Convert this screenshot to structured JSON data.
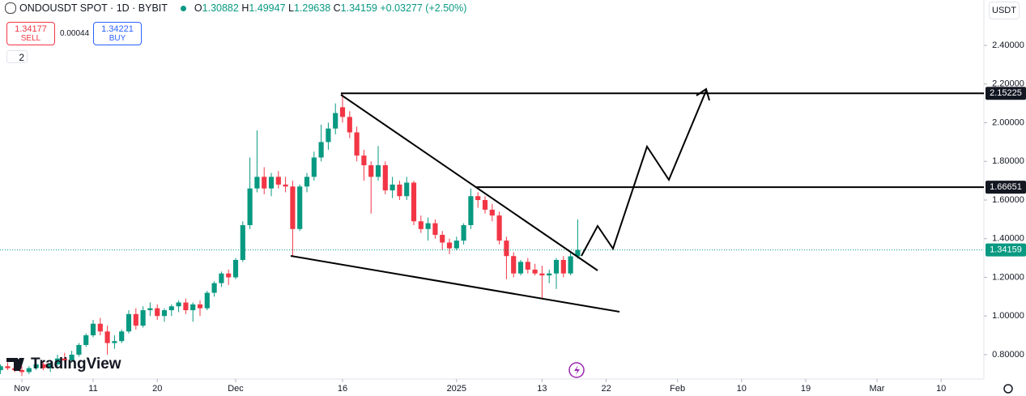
{
  "toolbar": {
    "symbol": "ONDOUSDT SPOT · 1D · BYBIT",
    "ohlc_letters": [
      "O",
      "H",
      "L",
      "C"
    ],
    "change": "+0.03277 (+2.50%)",
    "sell_price": "1.34177",
    "sell_label": "SELL",
    "spread": "0.00044",
    "buy_price": "1.34221",
    "buy_label": "BUY",
    "indicators_count": "2",
    "currency": "USDT",
    "brand": "TradingView"
  },
  "chart_data": {
    "type": "candlestick",
    "up_color": "#089981",
    "down_color": "#f23645",
    "x": [
      -3,
      -2,
      -1,
      0,
      1,
      2,
      3,
      4,
      5,
      6,
      7,
      8,
      9,
      10,
      11,
      12,
      13,
      14,
      15,
      16,
      17,
      18,
      19,
      20,
      21,
      22,
      23,
      24,
      25,
      26,
      27,
      28,
      29,
      30,
      31,
      32,
      33,
      34,
      35,
      36,
      37,
      38,
      39,
      40,
      41,
      42,
      43,
      44,
      45,
      46,
      47,
      48,
      49,
      50,
      51,
      52,
      53,
      54,
      55,
      56,
      57,
      58,
      59,
      60,
      61,
      62,
      63,
      64,
      65,
      66,
      67,
      68,
      69,
      70,
      71,
      72,
      73,
      74,
      75,
      76,
      77,
      78
    ],
    "open": [
      0.72,
      0.74,
      0.73,
      0.72,
      0.71,
      0.73,
      0.75,
      0.73,
      0.75,
      0.78,
      0.77,
      0.8,
      0.85,
      0.9,
      0.96,
      0.92,
      0.86,
      0.87,
      0.92,
      1.01,
      0.95,
      1.03,
      1.04,
      1.0,
      1.03,
      1.05,
      1.07,
      1.03,
      1.06,
      1.04,
      1.12,
      1.17,
      1.22,
      1.2,
      1.29,
      1.47,
      1.66,
      1.72,
      1.66,
      1.72,
      1.68,
      1.67,
      1.45,
      1.67,
      1.72,
      1.82,
      1.9,
      1.97,
      2.08,
      2.03,
      1.95,
      1.83,
      1.78,
      1.72,
      1.78,
      1.65,
      1.68,
      1.62,
      1.69,
      1.49,
      1.45,
      1.48,
      1.42,
      1.38,
      1.35,
      1.39,
      1.47,
      1.62,
      1.6,
      1.55,
      1.52,
      1.39,
      1.31,
      1.22,
      1.28,
      1.24,
      1.22,
      1.21,
      1.22,
      1.29,
      1.22,
      1.30882
    ],
    "high": [
      0.75,
      0.76,
      0.75,
      0.74,
      0.74,
      0.76,
      0.77,
      0.76,
      0.8,
      0.81,
      0.82,
      0.86,
      0.91,
      0.98,
      0.99,
      0.95,
      0.9,
      0.93,
      1.03,
      1.04,
      1.05,
      1.07,
      1.06,
      1.04,
      1.06,
      1.08,
      1.09,
      1.07,
      1.08,
      1.13,
      1.18,
      1.23,
      1.24,
      1.3,
      1.49,
      1.82,
      1.96,
      1.77,
      1.74,
      1.75,
      1.72,
      1.7,
      1.68,
      1.74,
      1.85,
      1.99,
      2.0,
      2.1,
      2.15225,
      2.06,
      1.98,
      1.86,
      1.8,
      1.88,
      1.8,
      1.72,
      1.7,
      1.72,
      1.7,
      1.52,
      1.51,
      1.5,
      1.44,
      1.4,
      1.41,
      1.48,
      1.66,
      1.64,
      1.62,
      1.58,
      1.54,
      1.41,
      1.33,
      1.29,
      1.3,
      1.27,
      1.26,
      1.24,
      1.3,
      1.31,
      1.33,
      1.49947
    ],
    "low": [
      0.7,
      0.72,
      0.71,
      0.69,
      0.7,
      0.72,
      0.72,
      0.71,
      0.74,
      0.76,
      0.76,
      0.79,
      0.84,
      0.89,
      0.9,
      0.8,
      0.83,
      0.86,
      0.91,
      0.93,
      0.94,
      1.0,
      0.98,
      0.97,
      1.0,
      1.02,
      1.01,
      0.97,
      1.0,
      1.03,
      1.1,
      1.15,
      1.16,
      1.19,
      1.28,
      1.45,
      1.64,
      1.63,
      1.62,
      1.66,
      1.64,
      1.31,
      1.44,
      1.64,
      1.7,
      1.8,
      1.86,
      1.94,
      2.0,
      1.92,
      1.8,
      1.7,
      1.53,
      1.7,
      1.63,
      1.61,
      1.6,
      1.6,
      1.47,
      1.43,
      1.39,
      1.4,
      1.34,
      1.32,
      1.34,
      1.37,
      1.45,
      1.56,
      1.53,
      1.49,
      1.37,
      1.19,
      1.2,
      1.21,
      1.22,
      1.21,
      1.09,
      1.17,
      1.14,
      1.2,
      1.21,
      1.29638
    ],
    "close": [
      0.74,
      0.73,
      0.72,
      0.71,
      0.73,
      0.75,
      0.73,
      0.75,
      0.78,
      0.77,
      0.8,
      0.85,
      0.9,
      0.96,
      0.92,
      0.86,
      0.87,
      0.92,
      1.01,
      0.95,
      1.03,
      1.04,
      1.0,
      1.03,
      1.05,
      1.07,
      1.03,
      1.06,
      1.04,
      1.12,
      1.17,
      1.22,
      1.2,
      1.29,
      1.47,
      1.66,
      1.72,
      1.66,
      1.72,
      1.68,
      1.67,
      1.45,
      1.67,
      1.72,
      1.82,
      1.9,
      1.97,
      2.05,
      2.03,
      1.95,
      1.83,
      1.78,
      1.72,
      1.78,
      1.65,
      1.68,
      1.62,
      1.69,
      1.49,
      1.45,
      1.48,
      1.42,
      1.38,
      1.35,
      1.39,
      1.47,
      1.62,
      1.6,
      1.55,
      1.52,
      1.39,
      1.31,
      1.22,
      1.28,
      1.24,
      1.22,
      1.21,
      1.22,
      1.29,
      1.22,
      1.30882,
      1.34159
    ],
    "xlim": [
      -3.07,
      135
    ],
    "xticks": [
      {
        "value": 0,
        "label": "Nov"
      },
      {
        "value": 10,
        "label": "11"
      },
      {
        "value": 19,
        "label": "20"
      },
      {
        "value": 30,
        "label": "Dec"
      },
      {
        "value": 45,
        "label": "16"
      },
      {
        "value": 61,
        "label": "2025"
      },
      {
        "value": 73,
        "label": "13"
      },
      {
        "value": 82,
        "label": "22"
      },
      {
        "value": 92,
        "label": "Feb"
      },
      {
        "value": 101,
        "label": "10"
      },
      {
        "value": 110,
        "label": "19"
      },
      {
        "value": 120,
        "label": "Mar"
      },
      {
        "value": 129,
        "label": "10"
      }
    ],
    "ylim": [
      0.674,
      2.635
    ],
    "yticks": [
      {
        "value": 0.8,
        "label": "0.80000"
      },
      {
        "value": 1.0,
        "label": "1.00000"
      },
      {
        "value": 1.2,
        "label": "1.20000"
      },
      {
        "value": 1.4,
        "label": "1.40000"
      },
      {
        "value": 1.6,
        "label": "1.60000"
      },
      {
        "value": 1.8,
        "label": "1.80000"
      },
      {
        "value": 2.0,
        "label": "2.00000"
      },
      {
        "value": 2.2,
        "label": "2.20000"
      },
      {
        "value": 2.4,
        "label": "2.40000"
      }
    ],
    "levels": [
      2.15225,
      1.66651
    ]
  }
}
